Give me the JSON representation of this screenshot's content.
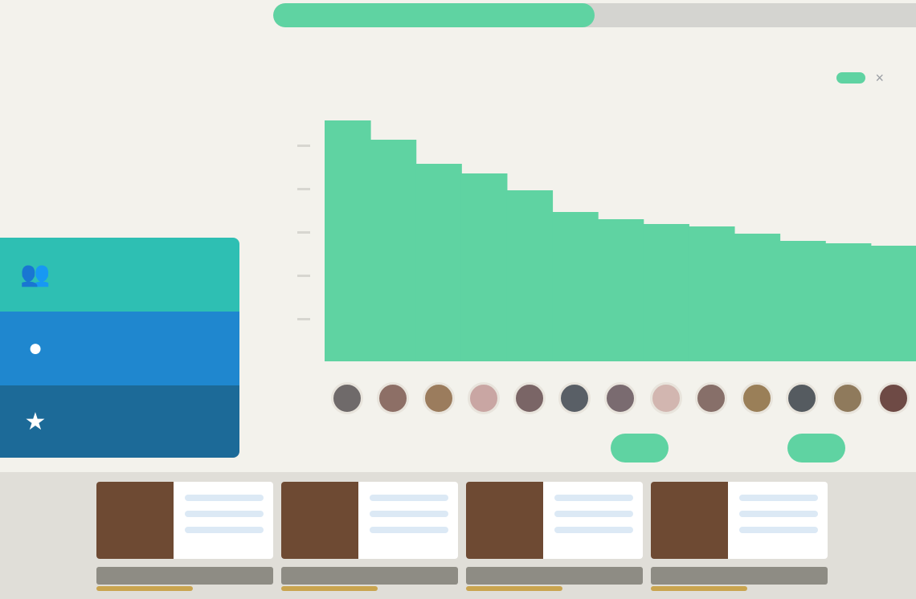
{
  "colors": {
    "accent": "#5fd3a2",
    "bar": "#5fd3a2",
    "card_teal": "#2ebfb3",
    "card_blue": "#1f87cf",
    "card_navy": "#1c6a98"
  },
  "progress": {
    "fraction": 0.5
  },
  "sidebar": {
    "title": "",
    "subtitle": ""
  },
  "stats": [
    {
      "icon": "users-icon",
      "value": ""
    },
    {
      "icon": "user-icon",
      "value": ""
    },
    {
      "icon": "star-icon",
      "value": ""
    }
  ],
  "chart_header": {
    "title": "",
    "hint": "",
    "tabs": [
      "",
      ""
    ],
    "close_icon": "close-icon"
  },
  "chart_data": {
    "type": "bar",
    "values": [
      100,
      92,
      82,
      78,
      71,
      62,
      59,
      57,
      56,
      53,
      50,
      49,
      48
    ],
    "ylim": [
      0,
      100
    ],
    "grid": false
  },
  "pager": {
    "items": [
      "",
      "",
      "",
      "",
      ""
    ],
    "active_index": [
      2,
      4
    ]
  },
  "bottom": {
    "cards": [
      {
        "caption": ""
      },
      {
        "caption": ""
      },
      {
        "caption": ""
      },
      {
        "caption": ""
      }
    ]
  }
}
